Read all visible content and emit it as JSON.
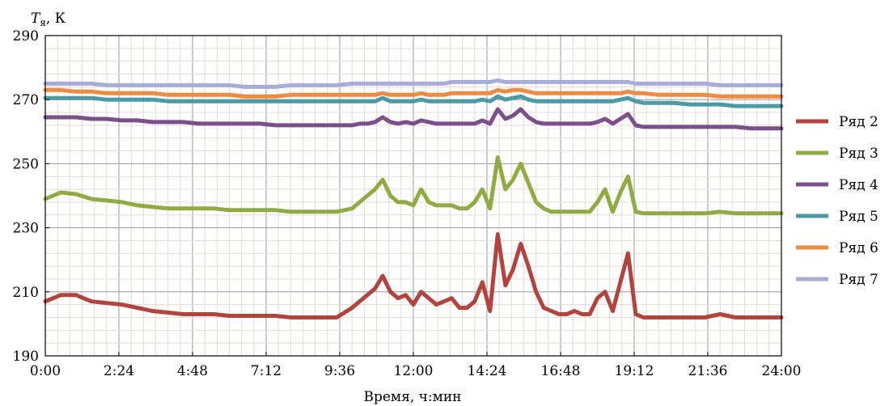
{
  "chart_data": {
    "type": "line",
    "title": "",
    "ylabel_symbol": "T",
    "ylabel_subscript": "я",
    "ylabel_unit": ", К",
    "xlabel": "Время, ч:мин",
    "xlim": [
      0,
      24
    ],
    "ylim": [
      190,
      290
    ],
    "x_ticks": [
      0,
      2.4,
      4.8,
      7.2,
      9.6,
      12,
      14.4,
      16.8,
      19.2,
      21.6,
      24
    ],
    "x_tick_labels": [
      "0:00",
      "2:24",
      "4:48",
      "7:12",
      "9:36",
      "12:00",
      "14:24",
      "16:48",
      "19:12",
      "21:36",
      "24:00"
    ],
    "y_ticks": [
      190,
      210,
      230,
      250,
      270,
      290
    ],
    "y_tick_labels": [
      "190",
      "210",
      "230",
      "250",
      "270",
      "290"
    ],
    "grid": true,
    "legend_position": "right",
    "x": [
      0,
      0.5,
      1,
      1.5,
      2,
      2.5,
      3,
      3.5,
      4,
      4.5,
      5,
      5.5,
      6,
      6.5,
      7,
      7.5,
      8,
      8.5,
      9,
      9.5,
      10,
      10.25,
      10.5,
      10.75,
      11,
      11.25,
      11.5,
      11.75,
      12,
      12.25,
      12.5,
      12.75,
      13,
      13.25,
      13.5,
      13.75,
      14,
      14.25,
      14.5,
      14.75,
      15,
      15.25,
      15.5,
      15.75,
      16,
      16.25,
      16.5,
      16.75,
      17,
      17.25,
      17.5,
      17.75,
      18,
      18.25,
      18.5,
      18.75,
      19,
      19.25,
      19.5,
      20,
      20.5,
      21,
      21.5,
      22,
      22.5,
      23,
      23.5,
      24
    ],
    "series": [
      {
        "name": "Ряд 2",
        "color": "#b3443d",
        "values": [
          207,
          209,
          209,
          207,
          206.5,
          206,
          205,
          204,
          203.5,
          203,
          203,
          203,
          202.5,
          202.5,
          202.5,
          202.5,
          202,
          202,
          202,
          202,
          205,
          207,
          209,
          211,
          215,
          210,
          208,
          209,
          206,
          210,
          208,
          206,
          207,
          208,
          205,
          205,
          207,
          213,
          204,
          228,
          212,
          217,
          225,
          218,
          210,
          205,
          204,
          203,
          203,
          204,
          203,
          203,
          208,
          210,
          204,
          213,
          222,
          203,
          202,
          202,
          202,
          202,
          202,
          203,
          202,
          202,
          202,
          202
        ]
      },
      {
        "name": "Ряд 3",
        "color": "#8fac42",
        "values": [
          239,
          241,
          240.5,
          239,
          238.5,
          238,
          237,
          236.5,
          236,
          236,
          236,
          236,
          235.5,
          235.5,
          235.5,
          235.5,
          235,
          235,
          235,
          235,
          236,
          238,
          240,
          242,
          245,
          240,
          238,
          238,
          237,
          242,
          238,
          237,
          237,
          237,
          236,
          236,
          238,
          242,
          236,
          252,
          242,
          245,
          250,
          244,
          238,
          236,
          235,
          235,
          235,
          235,
          235,
          235,
          238,
          242,
          235,
          241,
          246,
          235,
          234.5,
          234.5,
          234.5,
          234.5,
          234.5,
          235,
          234.5,
          234.5,
          234.5,
          234.5
        ]
      },
      {
        "name": "Ряд 4",
        "color": "#7a4f8c",
        "values": [
          264.5,
          264.5,
          264.5,
          264,
          264,
          263.5,
          263.5,
          263,
          263,
          263,
          262.5,
          262.5,
          262.5,
          262.5,
          262.5,
          262,
          262,
          262,
          262,
          262,
          262,
          262.5,
          262.5,
          263,
          264.5,
          263,
          262.5,
          263,
          262.5,
          263.5,
          263,
          262.5,
          262.5,
          262.5,
          262.5,
          262.5,
          262.5,
          263.5,
          262.5,
          267,
          264,
          265,
          267,
          264.5,
          263,
          262.5,
          262.5,
          262.5,
          262.5,
          262.5,
          262.5,
          262.5,
          263,
          264,
          262.5,
          264,
          265.5,
          262,
          261.5,
          261.5,
          261.5,
          261.5,
          261.5,
          261.5,
          261.5,
          261,
          261,
          261
        ]
      },
      {
        "name": "Ряд 5",
        "color": "#4c9aa5",
        "values": [
          270.5,
          270.5,
          270.5,
          270.5,
          270,
          270,
          270,
          270,
          269.5,
          269.5,
          269.5,
          269.5,
          269.5,
          269.5,
          269.5,
          269.5,
          269.5,
          269.5,
          269.5,
          269.5,
          269.5,
          269.5,
          269.5,
          269.5,
          270.5,
          269.5,
          269.5,
          269.5,
          269.5,
          270,
          269.5,
          269.5,
          269.5,
          269.5,
          269.5,
          269.5,
          269.5,
          270,
          269.5,
          271,
          270,
          270.5,
          271,
          270,
          269.5,
          269.5,
          269.5,
          269.5,
          269.5,
          269.5,
          269.5,
          269.5,
          269.5,
          269.5,
          269.5,
          270,
          270.5,
          269.5,
          269,
          269,
          269,
          268.5,
          268.5,
          268.5,
          268,
          268,
          268,
          268
        ]
      },
      {
        "name": "Ряд 6",
        "color": "#f08a3e",
        "values": [
          273,
          273,
          272.5,
          272.5,
          272,
          272,
          272,
          272,
          271.5,
          271.5,
          271.5,
          271.5,
          271.5,
          271,
          271,
          271,
          271.5,
          271.5,
          271.5,
          271.5,
          271.5,
          271.5,
          271.5,
          271.5,
          272,
          271.5,
          271.5,
          271.5,
          271.5,
          272,
          271.5,
          271.5,
          271.5,
          272,
          272,
          272,
          272,
          272,
          272,
          273,
          272.5,
          273,
          273,
          272.5,
          272,
          272,
          272,
          272,
          272,
          272,
          272,
          272,
          272,
          272,
          272,
          272,
          272.5,
          272,
          272,
          271.5,
          271.5,
          271.5,
          271.5,
          271,
          271,
          271,
          271,
          271
        ]
      },
      {
        "name": "Ряд 7",
        "color": "#a6addb",
        "values": [
          275,
          275,
          275,
          275,
          274.5,
          274.5,
          274.5,
          274.5,
          274.5,
          274.5,
          274.5,
          274.5,
          274.5,
          274,
          274,
          274,
          274.5,
          274.5,
          274.5,
          274.5,
          275,
          275,
          275,
          275,
          275,
          275,
          275,
          275,
          275,
          275,
          275,
          275,
          275,
          275.5,
          275.5,
          275.5,
          275.5,
          275.5,
          275.5,
          276,
          275.5,
          275.5,
          275.5,
          275.5,
          275.5,
          275.5,
          275.5,
          275.5,
          275.5,
          275.5,
          275.5,
          275.5,
          275.5,
          275.5,
          275.5,
          275.5,
          275.5,
          275,
          275,
          275,
          275,
          275,
          275,
          274.5,
          274.5,
          274.5,
          274.5,
          274.5
        ]
      }
    ]
  }
}
